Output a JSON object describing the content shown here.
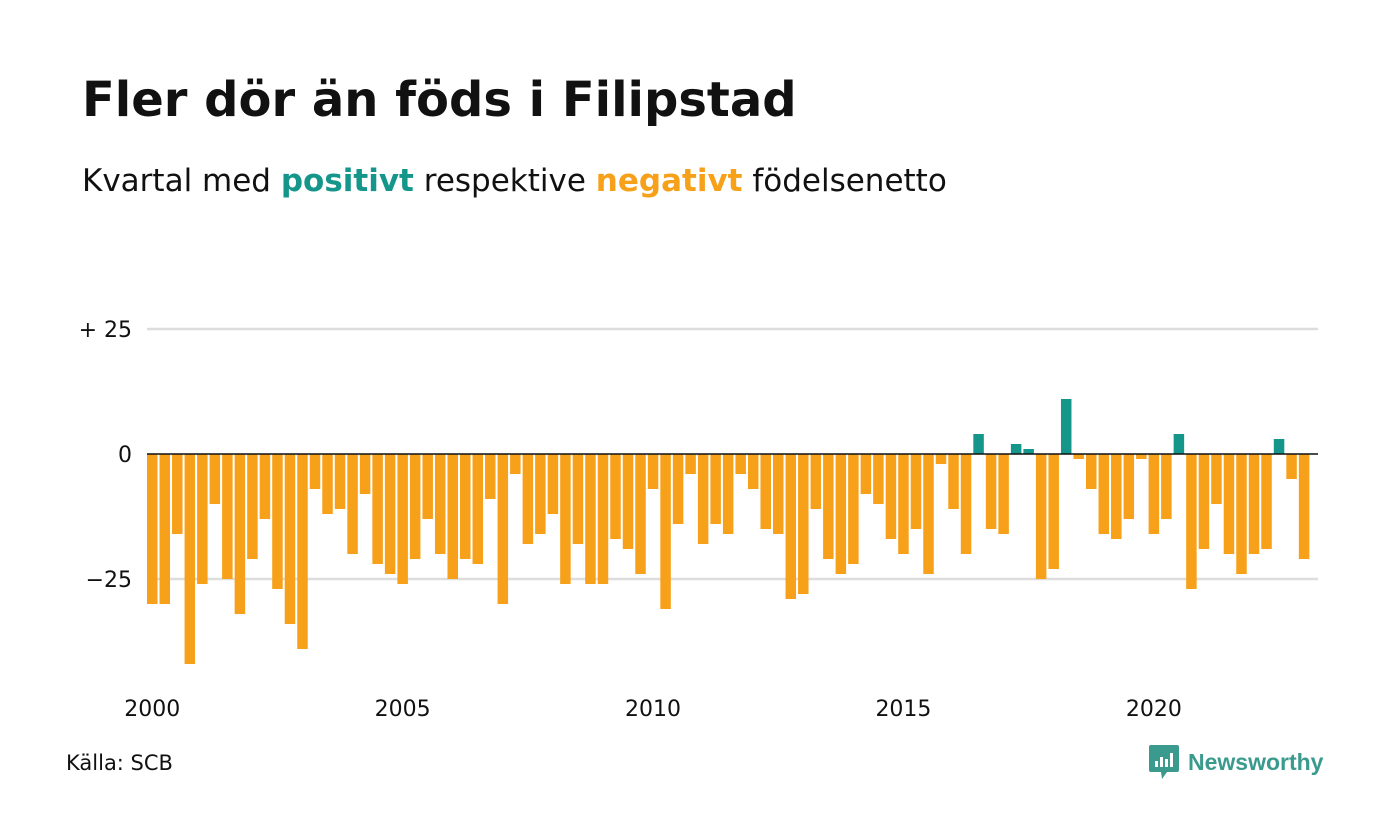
{
  "header": {
    "title": "Fler dör än föds i Filipstad",
    "subtitle_prefix": "Kvartal med",
    "subtitle_positive": "positivt",
    "subtitle_middle": "respektive",
    "subtitle_negative": "negativt",
    "subtitle_suffix": "födelsenetto"
  },
  "footer": {
    "source": "Källa: SCB",
    "brand": "Newsworthy"
  },
  "colors": {
    "positive": "#14968a",
    "negative": "#f7a11a",
    "grid": "#dddddd",
    "zero_line": "#111111",
    "brand": "#3a9a8d"
  },
  "chart_data": {
    "type": "bar",
    "start_year": 2000,
    "quarters_per_year": 4,
    "values": [
      -30,
      -30,
      -16,
      -42,
      -26,
      -10,
      -25,
      -32,
      -21,
      -13,
      -27,
      -34,
      -39,
      -7,
      -12,
      -11,
      -20,
      -8,
      -22,
      -24,
      -26,
      -21,
      -13,
      -20,
      -25,
      -21,
      -22,
      -9,
      -30,
      -4,
      -18,
      -16,
      -12,
      -26,
      -18,
      -26,
      -26,
      -17,
      -19,
      -24,
      -7,
      -31,
      -14,
      -4,
      -18,
      -14,
      -16,
      -4,
      -7,
      -15,
      -16,
      -29,
      -28,
      -11,
      -21,
      -24,
      -22,
      -8,
      -10,
      -17,
      -20,
      -15,
      -24,
      -2,
      -11,
      -20,
      4,
      -15,
      -16,
      2,
      1,
      -25,
      -23,
      11,
      -1,
      -7,
      -16,
      -17,
      -13,
      -1,
      -16,
      -13,
      4,
      -27,
      -19,
      -10,
      -20,
      -24,
      -20,
      -19,
      3,
      -5,
      -21
    ],
    "ylim": [
      -43,
      27
    ],
    "yticks": [
      25,
      0,
      -25
    ],
    "ytick_labels": [
      "+ 25",
      "0",
      "−25"
    ],
    "xticks": [
      2000,
      2005,
      2010,
      2015,
      2020
    ],
    "grid": true,
    "legend": "none"
  }
}
